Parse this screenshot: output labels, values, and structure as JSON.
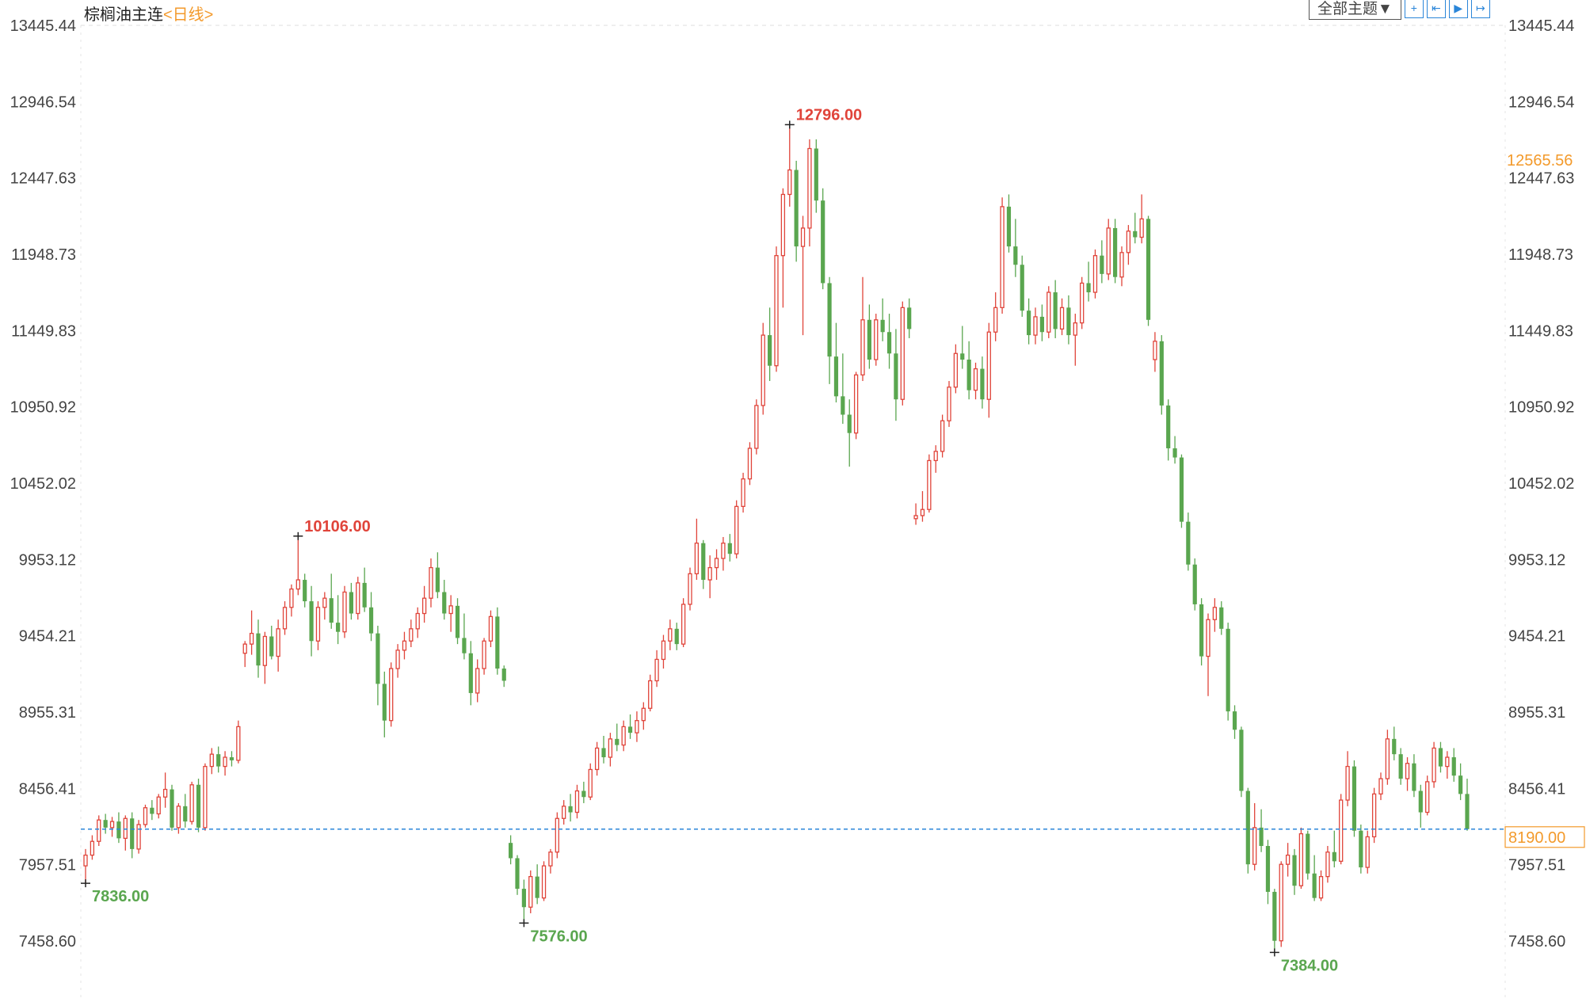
{
  "header": {
    "symbol": "棕榈油主连",
    "period": "<日线>",
    "theme_select": "全部主题▼",
    "tools": [
      {
        "name": "crosshair-icon",
        "glyph": "+"
      },
      {
        "name": "zoom-range-icon",
        "glyph": "⇤"
      },
      {
        "name": "play-icon",
        "glyph": "▶"
      },
      {
        "name": "exit-icon",
        "glyph": "↦"
      }
    ]
  },
  "chart_data": {
    "type": "candlestick",
    "title": "棕榈油主连",
    "period": "日线",
    "y_ticks": [
      "13445.44",
      "12946.54",
      "12447.63",
      "11948.73",
      "11449.83",
      "10950.92",
      "10452.02",
      "9953.12",
      "9454.21",
      "8955.31",
      "8456.41",
      "7957.51",
      "7458.60"
    ],
    "ylim": [
      7458.6,
      13445.44
    ],
    "grid": "dashed horizontal at top only",
    "colors": {
      "up": "#e0443a",
      "down": "#5aa64f",
      "last_line": "#2b86d9",
      "highlight": "#f39a2b"
    },
    "last_price": "8190.00",
    "cursor_price": "12565.56",
    "annotations": [
      {
        "label": "7836.00",
        "type": "low",
        "index": 0
      },
      {
        "label": "10106.00",
        "type": "high",
        "index": 32
      },
      {
        "label": "7576.00",
        "type": "low",
        "index": 66
      },
      {
        "label": "12796.00",
        "type": "high",
        "index": 106
      },
      {
        "label": "7384.00",
        "type": "low",
        "index": 179
      }
    ],
    "ohlc": [
      [
        7950,
        8060,
        7836,
        8020
      ],
      [
        8020,
        8150,
        7990,
        8110
      ],
      [
        8110,
        8280,
        8080,
        8250
      ],
      [
        8250,
        8290,
        8160,
        8200
      ],
      [
        8200,
        8270,
        8140,
        8240
      ],
      [
        8240,
        8300,
        8100,
        8130
      ],
      [
        8130,
        8280,
        8050,
        8260
      ],
      [
        8260,
        8300,
        8000,
        8060
      ],
      [
        8060,
        8250,
        8030,
        8220
      ],
      [
        8220,
        8350,
        8200,
        8330
      ],
      [
        8330,
        8380,
        8250,
        8290
      ],
      [
        8290,
        8420,
        8260,
        8400
      ],
      [
        8400,
        8560,
        8330,
        8450
      ],
      [
        8450,
        8480,
        8180,
        8200
      ],
      [
        8200,
        8360,
        8160,
        8340
      ],
      [
        8340,
        8420,
        8200,
        8240
      ],
      [
        8240,
        8500,
        8220,
        8480
      ],
      [
        8480,
        8520,
        8170,
        8200
      ],
      [
        8200,
        8620,
        8180,
        8600
      ],
      [
        8600,
        8720,
        8550,
        8680
      ],
      [
        8680,
        8730,
        8560,
        8600
      ],
      [
        8600,
        8700,
        8540,
        8660
      ],
      [
        8660,
        8700,
        8600,
        8640
      ],
      [
        8640,
        8900,
        8620,
        8860
      ],
      [
        9340,
        9420,
        9250,
        9400
      ],
      [
        9400,
        9620,
        9330,
        9470
      ],
      [
        9470,
        9560,
        9180,
        9260
      ],
      [
        9260,
        9480,
        9140,
        9450
      ],
      [
        9450,
        9520,
        9300,
        9320
      ],
      [
        9320,
        9560,
        9220,
        9500
      ],
      [
        9500,
        9680,
        9460,
        9640
      ],
      [
        9640,
        9790,
        9580,
        9760
      ],
      [
        9760,
        10106,
        9720,
        9820
      ],
      [
        9820,
        9860,
        9640,
        9680
      ],
      [
        9680,
        9780,
        9320,
        9420
      ],
      [
        9420,
        9680,
        9360,
        9640
      ],
      [
        9640,
        9740,
        9560,
        9700
      ],
      [
        9700,
        9860,
        9500,
        9540
      ],
      [
        9540,
        9720,
        9400,
        9480
      ],
      [
        9480,
        9780,
        9440,
        9740
      ],
      [
        9740,
        9800,
        9560,
        9600
      ],
      [
        9600,
        9840,
        9560,
        9800
      ],
      [
        9800,
        9900,
        9610,
        9640
      ],
      [
        9640,
        9740,
        9420,
        9470
      ],
      [
        9470,
        9520,
        9000,
        9140
      ],
      [
        9140,
        9220,
        8790,
        8900
      ],
      [
        8900,
        9280,
        8860,
        9240
      ],
      [
        9240,
        9400,
        9180,
        9360
      ],
      [
        9360,
        9480,
        9300,
        9420
      ],
      [
        9420,
        9560,
        9380,
        9500
      ],
      [
        9500,
        9640,
        9440,
        9600
      ],
      [
        9600,
        9780,
        9540,
        9700
      ],
      [
        9700,
        9960,
        9640,
        9900
      ],
      [
        9900,
        10000,
        9700,
        9740
      ],
      [
        9740,
        9820,
        9560,
        9600
      ],
      [
        9600,
        9720,
        9480,
        9650
      ],
      [
        9650,
        9700,
        9400,
        9440
      ],
      [
        9440,
        9600,
        9300,
        9340
      ],
      [
        9340,
        9420,
        9000,
        9080
      ],
      [
        9080,
        9300,
        9020,
        9240
      ],
      [
        9240,
        9440,
        9200,
        9420
      ],
      [
        9420,
        9620,
        9380,
        9580
      ],
      [
        9580,
        9640,
        9200,
        9240
      ],
      [
        9240,
        9260,
        9120,
        9160
      ],
      [
        8100,
        8150,
        7960,
        8000
      ],
      [
        8000,
        8020,
        7760,
        7800
      ],
      [
        7800,
        7860,
        7576,
        7680
      ],
      [
        7680,
        7920,
        7640,
        7880
      ],
      [
        7880,
        7960,
        7700,
        7740
      ],
      [
        7740,
        7980,
        7720,
        7950
      ],
      [
        7950,
        8060,
        7900,
        8040
      ],
      [
        8040,
        8300,
        8000,
        8260
      ],
      [
        8260,
        8380,
        8220,
        8340
      ],
      [
        8340,
        8420,
        8240,
        8300
      ],
      [
        8300,
        8480,
        8260,
        8440
      ],
      [
        8440,
        8500,
        8360,
        8400
      ],
      [
        8400,
        8620,
        8380,
        8580
      ],
      [
        8580,
        8760,
        8540,
        8720
      ],
      [
        8720,
        8800,
        8620,
        8660
      ],
      [
        8660,
        8820,
        8600,
        8780
      ],
      [
        8780,
        8880,
        8700,
        8740
      ],
      [
        8740,
        8900,
        8700,
        8860
      ],
      [
        8860,
        8940,
        8780,
        8820
      ],
      [
        8820,
        8960,
        8760,
        8900
      ],
      [
        8900,
        9020,
        8840,
        8980
      ],
      [
        8980,
        9200,
        8960,
        9160
      ],
      [
        9160,
        9360,
        9120,
        9300
      ],
      [
        9300,
        9460,
        9240,
        9420
      ],
      [
        9420,
        9560,
        9360,
        9500
      ],
      [
        9500,
        9540,
        9360,
        9400
      ],
      [
        9400,
        9700,
        9380,
        9660
      ],
      [
        9660,
        9900,
        9620,
        9860
      ],
      [
        9860,
        10220,
        9820,
        10060
      ],
      [
        10060,
        10080,
        9760,
        9820
      ],
      [
        9820,
        9980,
        9700,
        9900
      ],
      [
        9900,
        10020,
        9820,
        9960
      ],
      [
        9960,
        10100,
        9880,
        10060
      ],
      [
        10060,
        10120,
        9940,
        9990
      ],
      [
        9990,
        10340,
        9960,
        10300
      ],
      [
        10300,
        10520,
        10260,
        10480
      ],
      [
        10480,
        10720,
        10440,
        10680
      ],
      [
        10680,
        11000,
        10640,
        10960
      ],
      [
        10960,
        11500,
        10900,
        11420
      ],
      [
        11420,
        11600,
        11120,
        11220
      ],
      [
        11220,
        12000,
        11180,
        11940
      ],
      [
        11940,
        12380,
        11600,
        12340
      ],
      [
        12340,
        12796,
        12260,
        12500
      ],
      [
        12500,
        12560,
        11900,
        12000
      ],
      [
        12000,
        12200,
        11420,
        12120
      ],
      [
        12120,
        12700,
        12000,
        12640
      ],
      [
        12640,
        12700,
        12220,
        12300
      ],
      [
        12300,
        12380,
        11720,
        11760
      ],
      [
        11760,
        11800,
        11100,
        11280
      ],
      [
        11280,
        11500,
        10980,
        11020
      ],
      [
        11020,
        11300,
        10840,
        10900
      ],
      [
        10900,
        11000,
        10560,
        10780
      ],
      [
        10780,
        11180,
        10740,
        11160
      ],
      [
        11160,
        11800,
        11120,
        11520
      ],
      [
        11520,
        11620,
        11200,
        11260
      ],
      [
        11260,
        11560,
        11220,
        11520
      ],
      [
        11520,
        11660,
        11380,
        11440
      ],
      [
        11440,
        11560,
        11200,
        11300
      ],
      [
        11300,
        11460,
        10860,
        11000
      ],
      [
        11000,
        11640,
        10960,
        11600
      ],
      [
        11600,
        11660,
        11400,
        11460
      ],
      [
        10220,
        10320,
        10180,
        10240
      ],
      [
        10240,
        10400,
        10200,
        10280
      ],
      [
        10280,
        10640,
        10260,
        10600
      ],
      [
        10600,
        10700,
        10520,
        10660
      ],
      [
        10660,
        10900,
        10620,
        10860
      ],
      [
        10860,
        11120,
        10820,
        11080
      ],
      [
        11080,
        11360,
        11040,
        11300
      ],
      [
        11300,
        11480,
        11200,
        11260
      ],
      [
        11260,
        11380,
        11000,
        11060
      ],
      [
        11060,
        11240,
        11000,
        11200
      ],
      [
        11200,
        11280,
        10940,
        11000
      ],
      [
        11000,
        11500,
        10880,
        11440
      ],
      [
        11440,
        11700,
        11380,
        11600
      ],
      [
        11600,
        12320,
        11560,
        12260
      ],
      [
        12260,
        12340,
        11960,
        12000
      ],
      [
        12000,
        12180,
        11800,
        11880
      ],
      [
        11880,
        11940,
        11540,
        11580
      ],
      [
        11580,
        11660,
        11360,
        11420
      ],
      [
        11420,
        11600,
        11360,
        11540
      ],
      [
        11540,
        11620,
        11380,
        11440
      ],
      [
        11440,
        11740,
        11400,
        11700
      ],
      [
        11700,
        11780,
        11400,
        11460
      ],
      [
        11460,
        11660,
        11420,
        11600
      ],
      [
        11600,
        11680,
        11360,
        11420
      ],
      [
        11420,
        11560,
        11220,
        11500
      ],
      [
        11500,
        11800,
        11460,
        11760
      ],
      [
        11760,
        11900,
        11640,
        11700
      ],
      [
        11700,
        11980,
        11660,
        11940
      ],
      [
        11940,
        12040,
        11760,
        11820
      ],
      [
        11820,
        12180,
        11780,
        12120
      ],
      [
        12120,
        12180,
        11760,
        11800
      ],
      [
        11800,
        12000,
        11740,
        11960
      ],
      [
        11960,
        12140,
        11880,
        12100
      ],
      [
        12100,
        12220,
        12020,
        12060
      ],
      [
        12060,
        12340,
        12020,
        12180
      ],
      [
        12180,
        12200,
        11480,
        11520
      ],
      [
        11260,
        11440,
        11180,
        11380
      ],
      [
        11380,
        11420,
        10900,
        10960
      ],
      [
        10960,
        11000,
        10600,
        10680
      ],
      [
        10680,
        10760,
        10580,
        10620
      ],
      [
        10620,
        10640,
        10160,
        10200
      ],
      [
        10200,
        10260,
        9880,
        9920
      ],
      [
        9920,
        9960,
        9620,
        9660
      ],
      [
        9660,
        9700,
        9260,
        9320
      ],
      [
        9320,
        9600,
        9060,
        9560
      ],
      [
        9560,
        9700,
        9480,
        9640
      ],
      [
        9640,
        9680,
        9460,
        9500
      ],
      [
        9500,
        9540,
        8900,
        8960
      ],
      [
        8960,
        9000,
        8780,
        8840
      ],
      [
        8840,
        8860,
        8400,
        8440
      ],
      [
        8440,
        8460,
        7900,
        7960
      ],
      [
        7960,
        8360,
        7920,
        8200
      ],
      [
        8200,
        8320,
        8040,
        8080
      ],
      [
        8080,
        8120,
        7700,
        7780
      ],
      [
        7780,
        7800,
        7384,
        7460
      ],
      [
        7460,
        7980,
        7420,
        7960
      ],
      [
        7960,
        8100,
        7880,
        8020
      ],
      [
        8020,
        8060,
        7760,
        7820
      ],
      [
        7820,
        8200,
        7800,
        8160
      ],
      [
        8160,
        8180,
        7860,
        7900
      ],
      [
        7900,
        8020,
        7720,
        7740
      ],
      [
        7740,
        7920,
        7720,
        7880
      ],
      [
        7880,
        8080,
        7840,
        8040
      ],
      [
        8040,
        8180,
        7940,
        7980
      ],
      [
        7980,
        8420,
        7960,
        8380
      ],
      [
        8380,
        8700,
        8340,
        8600
      ],
      [
        8600,
        8640,
        8140,
        8180
      ],
      [
        8180,
        8220,
        7900,
        7940
      ],
      [
        7940,
        8180,
        7900,
        8140
      ],
      [
        8140,
        8460,
        8100,
        8420
      ],
      [
        8420,
        8560,
        8380,
        8520
      ],
      [
        8520,
        8840,
        8480,
        8780
      ],
      [
        8780,
        8860,
        8640,
        8680
      ],
      [
        8680,
        8720,
        8480,
        8520
      ],
      [
        8520,
        8660,
        8440,
        8620
      ],
      [
        8620,
        8680,
        8400,
        8440
      ],
      [
        8440,
        8480,
        8200,
        8300
      ],
      [
        8300,
        8540,
        8280,
        8500
      ],
      [
        8500,
        8760,
        8460,
        8720
      ],
      [
        8720,
        8760,
        8560,
        8600
      ],
      [
        8600,
        8700,
        8520,
        8660
      ],
      [
        8660,
        8720,
        8500,
        8540
      ],
      [
        8540,
        8620,
        8380,
        8420
      ],
      [
        8420,
        8520,
        8180,
        8190
      ]
    ]
  }
}
